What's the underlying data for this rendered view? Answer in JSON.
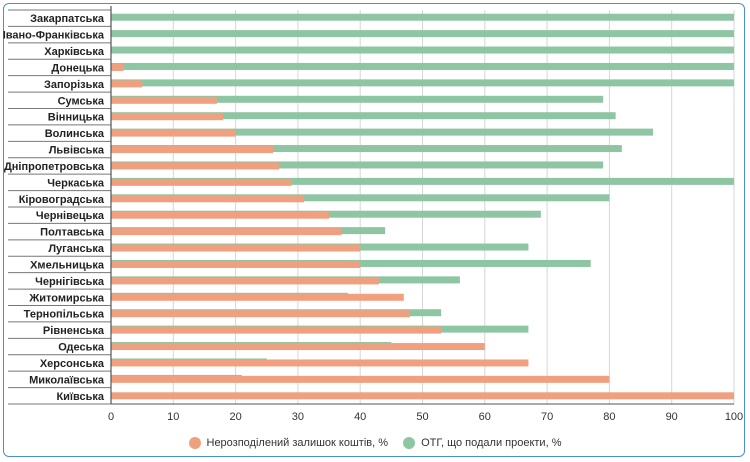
{
  "chart_data": {
    "type": "bar",
    "orientation": "horizontal",
    "categories": [
      "Закарпатська",
      "Івано-Франківська",
      "Харківська",
      "Донецька",
      "Запорізька",
      "Сумська",
      "Вінницька",
      "Волинська",
      "Львівська",
      "Дніпропетровська",
      "Черкаська",
      "Кіровоградська",
      "Чернівецька",
      "Полтавська",
      "Луганська",
      "Хмельницька",
      "Чернігівська",
      "Житомирська",
      "Тернопільська",
      "Рівненська",
      "Одеська",
      "Херсонська",
      "Миколаївська",
      "Київська"
    ],
    "series": [
      {
        "name": "Нерозподілений залишок коштів, %",
        "color": "#f0a07f",
        "values": [
          0,
          0,
          0,
          2,
          5,
          17,
          18,
          20,
          26,
          27,
          29,
          31,
          35,
          37,
          40,
          40,
          43,
          47,
          48,
          53,
          60,
          67,
          80,
          100
        ]
      },
      {
        "name": "ОТГ, що подали проекти, %",
        "color": "#8ec5a3",
        "values": [
          100,
          100,
          100,
          100,
          100,
          79,
          81,
          87,
          82,
          79,
          100,
          80,
          69,
          44,
          67,
          77,
          56,
          38,
          53,
          67,
          45,
          25,
          21,
          0
        ]
      }
    ],
    "xlim": [
      0,
      100
    ],
    "xticks": [
      "0",
      "10",
      "20",
      "30",
      "40",
      "50",
      "60",
      "70",
      "80",
      "90",
      "100"
    ],
    "grid": true,
    "legend_position": "bottom"
  }
}
